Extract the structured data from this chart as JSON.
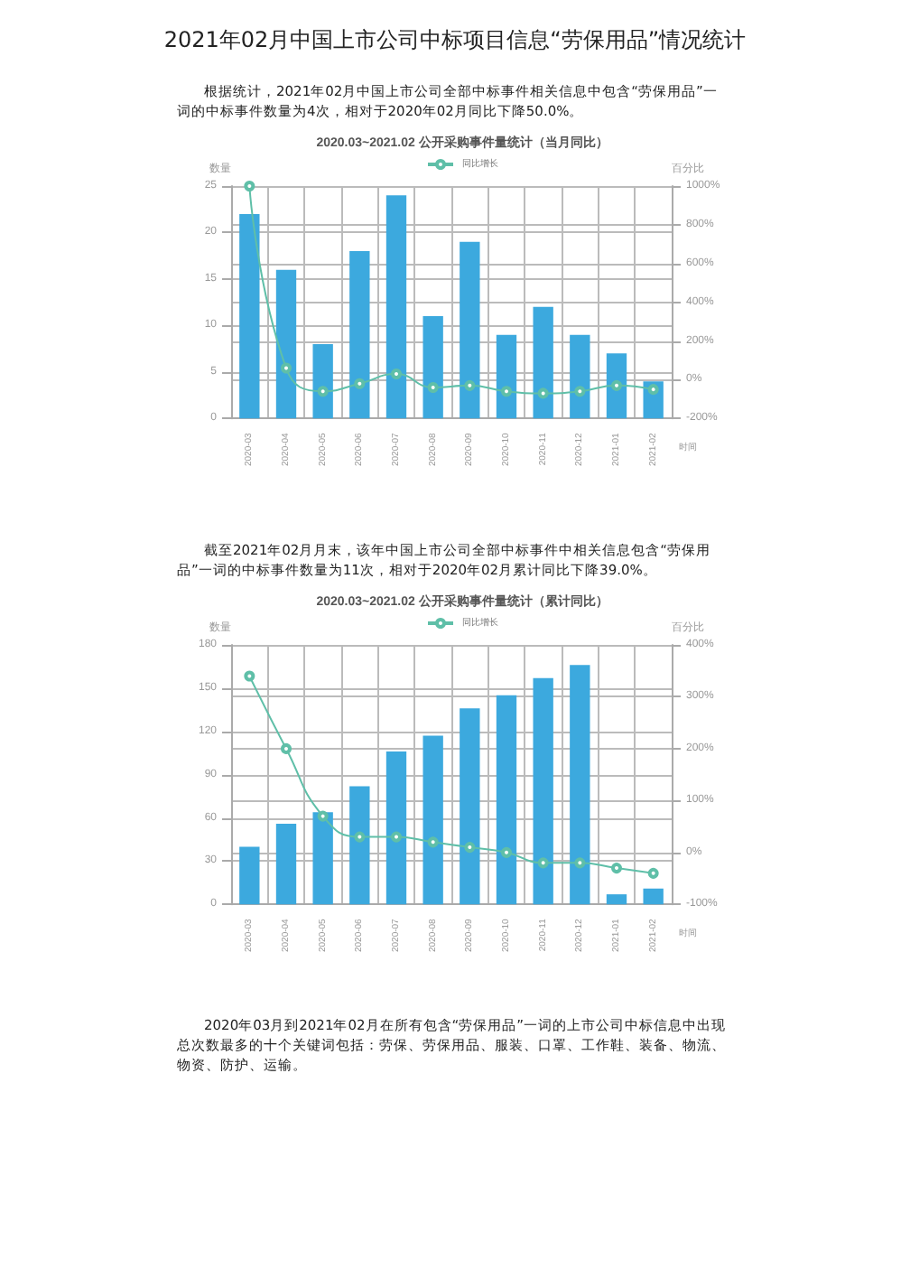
{
  "chart_data": [
    {
      "type": "bar",
      "title": "2020.03~2021.02 公开采购事件量统计（当月同比）",
      "annotations": [
        "2021年02月中国上市公司中标项目信息“劳保用品”情况统计",
        "根据统计，2021年02月中国上市公司全部中标事件相关信息中包含“劳保用品”一词的中标事件数量为4次，相对于2020年02月同比下降50.0%。"
      ],
      "xlabel": "时间",
      "ylabel": "数量",
      "y2label": "百分比",
      "categories": [
        "2020-03",
        "2020-04",
        "2020-05",
        "2020-06",
        "2020-07",
        "2020-08",
        "2020-09",
        "2020-10",
        "2020-11",
        "2020-12",
        "2021-01",
        "2021-02"
      ],
      "series": [
        {
          "color": "#3ca9de",
          "values": [
            22,
            16,
            8,
            18,
            24,
            11,
            19,
            9,
            12,
            9,
            7,
            4
          ]
        },
        {
          "type": "line",
          "name": "同比增长",
          "axis": "y2",
          "color": "#5fbfa8",
          "values": [
            1000,
            60,
            -60,
            -20,
            30,
            -40,
            -30,
            -60,
            -70,
            -60,
            -30,
            -50
          ]
        }
      ],
      "ylim": [
        0,
        25
      ],
      "yticks": [
        0,
        5,
        10,
        15,
        20,
        25
      ],
      "y2lim": [
        -200,
        1000
      ],
      "y2ticks": [
        {
          "value": -200,
          "label": "-200%"
        },
        {
          "value": 0,
          "label": "0%"
        },
        {
          "value": 200,
          "label": "200%"
        },
        {
          "value": 400,
          "label": "400%"
        },
        {
          "value": 600,
          "label": "600%"
        },
        {
          "value": 800,
          "label": "800%"
        },
        {
          "value": 1000,
          "label": "1000%"
        }
      ],
      "grid": true,
      "legend": "top",
      "marker": "circle"
    },
    {
      "type": "bar",
      "title": "2020.03~2021.02 公开采购事件量统计（累计同比）",
      "annotations": [
        "截至2021年02月月末，该年中国上市公司全部中标事件中相关信息包含“劳保用品”一词的中标事件数量为11次，相对于2020年02月累计同比下降39.0%。",
        "2020年03月到2021年02月在所有包含“劳保用品”一词的上市公司中标信息中出现总次数最多的十个关键词包括：劳保、劳保用品、服装、口罩、工作鞋、装备、物流、物资、防护、运输。"
      ],
      "xlabel": "时间",
      "ylabel": "数量",
      "y2label": "百分比",
      "categories": [
        "2020-03",
        "2020-04",
        "2020-05",
        "2020-06",
        "2020-07",
        "2020-08",
        "2020-09",
        "2020-10",
        "2020-11",
        "2020-12",
        "2021-01",
        "2021-02"
      ],
      "series": [
        {
          "color": "#3ca9de",
          "values": [
            40,
            56,
            64,
            82,
            106,
            117,
            136,
            145,
            157,
            166,
            7,
            11
          ]
        },
        {
          "type": "line",
          "name": "同比增长",
          "axis": "y2",
          "color": "#5fbfa8",
          "values": [
            340,
            200,
            70,
            30,
            30,
            20,
            10,
            0,
            -20,
            -20,
            -30,
            -40
          ]
        }
      ],
      "ylim": [
        0,
        180
      ],
      "yticks": [
        0,
        30,
        60,
        90,
        120,
        150,
        180
      ],
      "y2lim": [
        -100,
        400
      ],
      "y2ticks": [
        {
          "value": -100,
          "label": "-100%"
        },
        {
          "value": 0,
          "label": "0%"
        },
        {
          "value": 100,
          "label": "100%"
        },
        {
          "value": 200,
          "label": "200%"
        },
        {
          "value": 300,
          "label": "300%"
        },
        {
          "value": 400,
          "label": "400%"
        }
      ],
      "grid": true,
      "legend": "top",
      "marker": "circle"
    }
  ]
}
